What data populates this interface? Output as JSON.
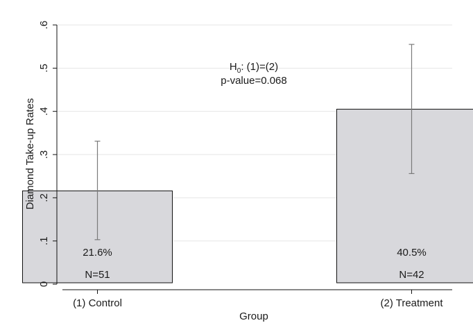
{
  "chart_data": {
    "type": "bar",
    "title": "",
    "xlabel": "Group",
    "ylabel": "Diamond Take-up Rates",
    "ylim": [
      0,
      0.6
    ],
    "yticks": [
      0,
      0.1,
      0.2,
      0.3,
      0.4,
      0.5,
      0.6
    ],
    "ytick_labels": [
      "0",
      ".1",
      ".2",
      ".3",
      ".4",
      ".5",
      ".6"
    ],
    "grid": true,
    "categories": [
      "(1) Control",
      "(2) Treatment"
    ],
    "values": [
      0.216,
      0.405
    ],
    "error_low": [
      0.103,
      0.256
    ],
    "error_high": [
      0.331,
      0.555
    ],
    "value_labels": [
      "21.6%",
      "40.5%"
    ],
    "n_labels": [
      "N=51",
      "N=42"
    ],
    "annotation": {
      "h0_prefix": "H",
      "h0_sub": "0",
      "h0_rest": ": (1)=(2)",
      "pvalue": "p-value=0.068"
    },
    "colors": {
      "bar_fill": "#d8d8dc",
      "bar_stroke": "#111111",
      "error_bar": "#7a7a7a",
      "grid": "#e6e6e6",
      "axis": "#111111"
    }
  }
}
